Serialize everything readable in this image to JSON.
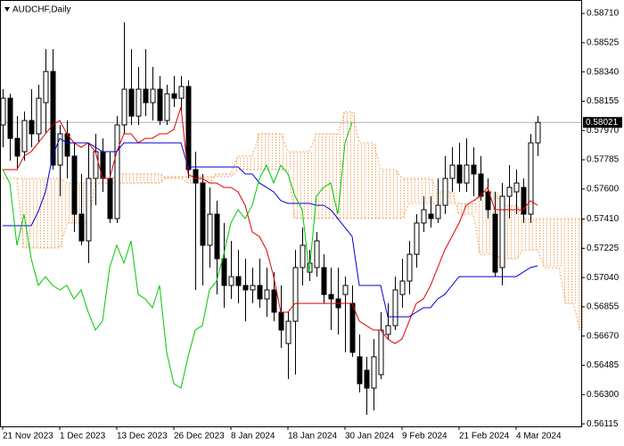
{
  "chart_data": {
    "type": "candlestick",
    "title": "AUDCHF,Daily",
    "xlim": [
      -0.375,
      81.125
    ],
    "ylim": [
      0.56099,
      0.58795
    ],
    "xticks": [
      {
        "value": 0,
        "label": "21 Nov 2023"
      },
      {
        "value": 8,
        "label": "1 Dec 2023"
      },
      {
        "value": 16,
        "label": "13 Dec 2023"
      },
      {
        "value": 24,
        "label": "26 Dec 2023"
      },
      {
        "value": 32,
        "label": "8 Jan 2024"
      },
      {
        "value": 40,
        "label": "18 Jan 2024"
      },
      {
        "value": 48,
        "label": "30 Jan 2024"
      },
      {
        "value": 56,
        "label": "9 Feb 2024"
      },
      {
        "value": 64,
        "label": "21 Feb 2024"
      },
      {
        "value": 72,
        "label": "4 Mar 2024"
      }
    ],
    "yticks": [
      {
        "value": 0.5871,
        "label": "0.58710"
      },
      0.58525,
      {
        "value": 0.5834,
        "label": "0.58340"
      },
      0.58155,
      {
        "value": 0.5797,
        "label": "0.57970"
      },
      0.57785,
      {
        "value": 0.576,
        "label": "0.57600"
      },
      {
        "value": 0.5741,
        "label": "0.57410"
      },
      0.57225,
      {
        "value": 0.5704,
        "label": "0.57040"
      },
      0.56855,
      {
        "value": 0.5667,
        "label": "0.56670"
      },
      0.56485,
      {
        "value": 0.563,
        "label": "0.56300"
      },
      0.56115
    ],
    "last_price": 0.58021,
    "bull_color": "#ffffff",
    "bear_color": "#000000",
    "ohlc": [
      [
        0.58005,
        0.58231,
        0.57864,
        0.58174
      ],
      [
        0.58174,
        0.58202,
        0.57779,
        0.5792
      ],
      [
        0.5792,
        0.58061,
        0.57723,
        0.57808
      ],
      [
        0.57836,
        0.5809,
        0.57779,
        0.58033
      ],
      [
        0.58033,
        0.58231,
        0.57864,
        0.57949
      ],
      [
        0.57949,
        0.58259,
        0.57892,
        0.58174
      ],
      [
        0.58146,
        0.58484,
        0.57949,
        0.58343
      ],
      [
        0.58343,
        0.58484,
        0.57723,
        0.57751
      ],
      [
        0.57751,
        0.58005,
        0.57554,
        0.57949
      ],
      [
        0.57949,
        0.58033,
        0.57667,
        0.57808
      ],
      [
        0.57808,
        0.57892,
        0.57328,
        0.57441
      ],
      [
        0.57441,
        0.57695,
        0.57244,
        0.57272
      ],
      [
        0.57272,
        0.57892,
        0.57131,
        0.57667
      ],
      [
        0.57667,
        0.57949,
        0.57497,
        0.57836
      ],
      [
        0.57836,
        0.5792,
        0.57582,
        0.57667
      ],
      [
        0.57667,
        0.57836,
        0.57385,
        0.57413
      ],
      [
        0.57413,
        0.58061,
        0.57385,
        0.58005
      ],
      [
        0.58005,
        0.58654,
        0.57949,
        0.58231
      ],
      [
        0.58231,
        0.58484,
        0.58005,
        0.58061
      ],
      [
        0.58061,
        0.58372,
        0.58005,
        0.58231
      ],
      [
        0.58231,
        0.58484,
        0.58061,
        0.58146
      ],
      [
        0.58146,
        0.58372,
        0.58033,
        0.58231
      ],
      [
        0.58231,
        0.58315,
        0.58005,
        0.58033
      ],
      [
        0.58033,
        0.58259,
        0.58005,
        0.58202
      ],
      [
        0.58202,
        0.58315,
        0.58118,
        0.58174
      ],
      [
        0.58174,
        0.58315,
        0.5809,
        0.58248
      ],
      [
        0.58248,
        0.58287,
        0.57667,
        0.57723
      ],
      [
        0.57723,
        0.57836,
        0.56962,
        0.57638
      ],
      [
        0.57638,
        0.57695,
        0.5699,
        0.57244
      ],
      [
        0.57244,
        0.5761,
        0.57103,
        0.57441
      ],
      [
        0.57441,
        0.57526,
        0.56933,
        0.57159
      ],
      [
        0.57159,
        0.57385,
        0.56849,
        0.5699
      ],
      [
        0.5699,
        0.57272,
        0.56905,
        0.57046
      ],
      [
        0.57046,
        0.57215,
        0.56877,
        0.5699
      ],
      [
        0.5699,
        0.57159,
        0.56764,
        0.56962
      ],
      [
        0.56962,
        0.57103,
        0.56877,
        0.5699
      ],
      [
        0.5699,
        0.57159,
        0.56849,
        0.56905
      ],
      [
        0.56905,
        0.57103,
        0.56792,
        0.56962
      ],
      [
        0.56962,
        0.57074,
        0.56764,
        0.56821
      ],
      [
        0.56821,
        0.5699,
        0.56595,
        0.56708
      ],
      [
        0.56623,
        0.56821,
        0.56398,
        0.56764
      ],
      [
        0.56764,
        0.57215,
        0.56426,
        0.57103
      ],
      [
        0.57103,
        0.57356,
        0.5699,
        0.57244
      ],
      [
        0.57074,
        0.57215,
        0.57018,
        0.57131
      ],
      [
        0.57103,
        0.57328,
        0.57046,
        0.57272
      ],
      [
        0.57103,
        0.57187,
        0.56877,
        0.56933
      ],
      [
        0.56933,
        0.57103,
        0.56708,
        0.56905
      ],
      [
        0.56905,
        0.57103,
        0.5668,
        0.56849
      ],
      [
        0.56933,
        0.57046,
        0.56567,
        0.5699
      ],
      [
        0.56877,
        0.5699,
        0.56539,
        0.56567
      ],
      [
        0.56539,
        0.5668,
        0.56313,
        0.56369
      ],
      [
        0.56454,
        0.56539,
        0.56172,
        0.56341
      ],
      [
        0.56341,
        0.56651,
        0.562,
        0.56539
      ],
      [
        0.56426,
        0.56821,
        0.56398,
        0.56708
      ],
      [
        0.5668,
        0.56877,
        0.56651,
        0.56736
      ],
      [
        0.56736,
        0.57046,
        0.56708,
        0.56962
      ],
      [
        0.56933,
        0.57159,
        0.56849,
        0.57018
      ],
      [
        0.57018,
        0.57272,
        0.56933,
        0.57187
      ],
      [
        0.57187,
        0.57441,
        0.57103,
        0.57385
      ],
      [
        0.57385,
        0.57554,
        0.57328,
        0.57469
      ],
      [
        0.57441,
        0.57554,
        0.57356,
        0.57413
      ],
      [
        0.57413,
        0.57667,
        0.57385,
        0.57497
      ],
      [
        0.57497,
        0.57808,
        0.57441,
        0.57667
      ],
      [
        0.57667,
        0.57864,
        0.57582,
        0.57751
      ],
      [
        0.57751,
        0.57892,
        0.57582,
        0.57638
      ],
      [
        0.57638,
        0.5792,
        0.57582,
        0.57751
      ],
      [
        0.57751,
        0.57864,
        0.57554,
        0.57695
      ],
      [
        0.57695,
        0.57808,
        0.57526,
        0.57554
      ],
      [
        0.57582,
        0.57667,
        0.57413,
        0.57469
      ],
      [
        0.57441,
        0.57582,
        0.57046,
        0.57074
      ],
      [
        0.57103,
        0.57638,
        0.5699,
        0.57554
      ],
      [
        0.57554,
        0.57751,
        0.57413,
        0.5761
      ],
      [
        0.57582,
        0.57723,
        0.57441,
        0.57638
      ],
      [
        0.5761,
        0.57667,
        0.57385,
        0.57441
      ],
      [
        0.57441,
        0.57949,
        0.57385,
        0.57892
      ],
      [
        0.57892,
        0.58061,
        0.57808,
        0.58021
      ]
    ],
    "cloud": {
      "color": "#f4a460",
      "span_a": [
        0.57667,
        0.57667,
        0.57667,
        0.57667,
        0.57667,
        0.57667,
        0.57667,
        0.57667,
        0.57667,
        0.57638,
        0.57638,
        0.57638,
        0.57638,
        0.57638,
        0.57638,
        0.57638,
        0.57695,
        0.57695,
        0.57695,
        0.57695,
        0.57695,
        0.57695,
        0.57695,
        0.57667,
        0.57667,
        0.57667,
        0.57638,
        0.57638,
        0.57638,
        0.57638,
        0.57695,
        0.57695,
        0.57695,
        0.57808,
        0.57808,
        0.57808,
        0.57949,
        0.57949,
        0.57949,
        0.57949,
        0.57836,
        0.57836,
        0.57836,
        0.57836,
        0.57949,
        0.57949,
        0.57949,
        0.57949,
        0.5809,
        0.5809,
        0.57892,
        0.57892,
        0.57892,
        0.57723,
        0.57723,
        0.57723,
        0.57667,
        0.57667,
        0.57667,
        0.57667,
        0.57667,
        0.57582,
        0.57582,
        0.57582,
        0.57441,
        0.57441,
        0.57441,
        0.57187,
        0.57187,
        0.57187,
        0.57159,
        0.57159,
        0.57159,
        0.57215,
        0.57215,
        0.57215,
        0.57103,
        0.57103,
        0.57103,
        0.56877,
        0.56877,
        0.56708
      ],
      "span_b": [
        0.57667,
        0.57667,
        0.57667,
        0.57227,
        0.57227,
        0.57227,
        0.57227,
        0.57227,
        0.57227,
        0.57385,
        0.57385,
        0.57385,
        0.57385,
        0.57638,
        0.57638,
        0.57638,
        0.57638,
        0.57638,
        0.57638,
        0.57638,
        0.57638,
        0.57638,
        0.57638,
        0.57678,
        0.57678,
        0.57678,
        0.57678,
        0.57678,
        0.57678,
        0.57678,
        0.57678,
        0.57678,
        0.57678,
        0.57723,
        0.57723,
        0.57723,
        0.57723,
        0.57723,
        0.57723,
        0.57723,
        0.57723,
        0.57413,
        0.57413,
        0.57413,
        0.57413,
        0.57413,
        0.57413,
        0.57413,
        0.57413,
        0.57413,
        0.57413,
        0.57413,
        0.57413,
        0.57413,
        0.57413,
        0.57413,
        0.57413,
        0.57509,
        0.57509,
        0.57509,
        0.57509,
        0.57509,
        0.57509,
        0.57509,
        0.57509,
        0.57509,
        0.57509,
        0.57582,
        0.57582,
        0.57582,
        0.57497,
        0.57497,
        0.57497,
        0.57413,
        0.57413,
        0.57413,
        0.57413,
        0.57413,
        0.57413,
        0.57413,
        0.57413,
        0.57413
      ]
    },
    "series": [
      {
        "color": "#e00000",
        "values": [
          0.57723,
          0.57723,
          0.57723,
          0.57808,
          0.57836,
          0.57892,
          0.57949,
          0.58005,
          0.58033,
          0.57949,
          0.57892,
          0.57864,
          0.57892,
          0.57836,
          0.57667,
          0.57667,
          0.57836,
          0.57949,
          0.57949,
          0.57892,
          0.5792,
          0.5792,
          0.57949,
          0.57949,
          0.57977,
          0.58118,
          0.57695,
          0.57667,
          0.57667,
          0.57638,
          0.57638,
          0.5761,
          0.5761,
          0.57582,
          0.57497,
          0.57328,
          0.573,
          0.57215,
          0.57046,
          0.56821,
          0.56821,
          0.56877,
          0.56877,
          0.56877,
          0.56877,
          0.56877,
          0.56877,
          0.56877,
          0.56877,
          0.56877,
          0.56764,
          0.56736,
          0.56708,
          0.56708,
          0.56651,
          0.56623,
          0.56651,
          0.56764,
          0.56877,
          0.56905,
          0.5699,
          0.57103,
          0.57215,
          0.573,
          0.57385,
          0.57497,
          0.57526,
          0.57554,
          0.5761,
          0.57469,
          0.57469,
          0.57469,
          0.57469,
          0.57469,
          0.57526,
          0.57497,
          null,
          null,
          null,
          null,
          null,
          null
        ]
      },
      {
        "color": "#0000d0",
        "values": [
          0.57368,
          0.57368,
          0.57368,
          0.57368,
          0.57368,
          0.57458,
          0.57582,
          0.57808,
          0.5792,
          0.57892,
          0.57892,
          0.57892,
          0.57892,
          0.57864,
          0.57836,
          0.57836,
          0.57836,
          0.57892,
          0.57892,
          0.57892,
          0.57892,
          0.57892,
          0.57892,
          0.57892,
          0.57892,
          0.57892,
          0.5774,
          0.5774,
          0.5774,
          0.5774,
          0.5774,
          0.5774,
          0.5774,
          0.5774,
          0.57695,
          0.57695,
          0.57638,
          0.5761,
          0.57582,
          0.57526,
          0.57509,
          0.57509,
          0.57509,
          0.57509,
          0.57497,
          0.57497,
          0.57469,
          0.57413,
          0.57356,
          0.573,
          0.5699,
          0.5699,
          0.5699,
          0.5699,
          0.56792,
          0.56792,
          0.56792,
          0.56792,
          0.56821,
          0.56849,
          0.56849,
          0.56905,
          0.56933,
          0.5699,
          0.57046,
          0.57046,
          0.57046,
          0.57046,
          0.57046,
          0.57046,
          0.57046,
          0.57046,
          0.57046,
          0.57074,
          0.57103,
          0.57114,
          null,
          null,
          null,
          null,
          null,
          null
        ]
      },
      {
        "color": "#00c800",
        "values": [
          0.57723,
          0.57638,
          0.57244,
          0.57441,
          0.57159,
          0.5699,
          0.57046,
          0.5699,
          0.56962,
          0.5699,
          0.56905,
          0.56962,
          0.56821,
          0.56708,
          0.56764,
          0.57103,
          0.57244,
          0.57131,
          0.57272,
          0.56933,
          0.56905,
          0.56849,
          0.5699,
          0.56567,
          0.56369,
          0.56341,
          0.56539,
          0.56708,
          0.56736,
          0.56962,
          0.57018,
          0.57187,
          0.57385,
          0.57469,
          0.57413,
          0.57497,
          0.57667,
          0.57751,
          0.57638,
          0.57751,
          0.57695,
          0.57554,
          0.57469,
          0.57074,
          0.57554,
          0.5761,
          0.57638,
          0.57441,
          0.57892,
          0.58021,
          null,
          null,
          null,
          null,
          null,
          null,
          null,
          null,
          null,
          null,
          null,
          null,
          null,
          null,
          null,
          null,
          null,
          null,
          null,
          null,
          null,
          null,
          null,
          null,
          null,
          null,
          null,
          null,
          null,
          null,
          null,
          null
        ]
      }
    ]
  }
}
